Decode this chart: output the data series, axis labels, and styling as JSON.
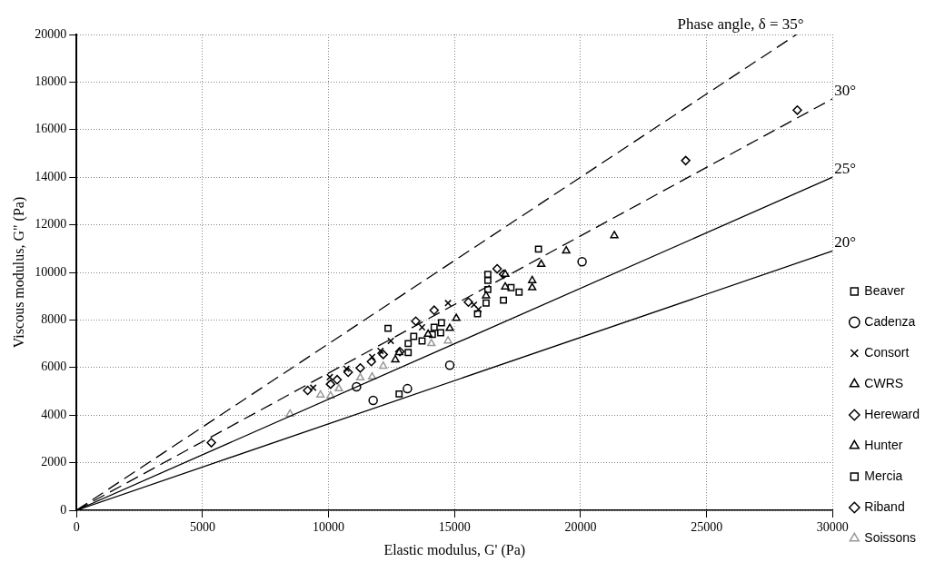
{
  "chart_data": {
    "type": "scatter",
    "xlabel": "Elastic modulus, G' (Pa)",
    "ylabel": "Viscous modulus, G\" (Pa)",
    "xlim": [
      0,
      30000
    ],
    "ylim": [
      0,
      20000
    ],
    "xticks": [
      0,
      5000,
      10000,
      15000,
      20000,
      25000,
      30000
    ],
    "yticks": [
      0,
      2000,
      4000,
      6000,
      8000,
      10000,
      12000,
      14000,
      16000,
      18000,
      20000
    ],
    "grid": true,
    "legend": "right",
    "series": [
      {
        "type": "line",
        "name": "Phase angle, δ = 35°",
        "color": "#000000",
        "line_style": "dashed",
        "marker": "none",
        "x": [
          0,
          28570
        ],
        "values": [
          0,
          20000
        ]
      },
      {
        "type": "line",
        "name": "30°",
        "color": "#000000",
        "line_style": "dashed",
        "marker": "none",
        "x": [
          0,
          30000
        ],
        "values": [
          0,
          17300
        ]
      },
      {
        "type": "line",
        "name": "25°",
        "color": "#000000",
        "line_style": "solid",
        "marker": "none",
        "x": [
          0,
          30000
        ],
        "values": [
          0,
          14000
        ]
      },
      {
        "type": "line",
        "name": "20°",
        "color": "#000000",
        "line_style": "solid",
        "marker": "none",
        "x": [
          0,
          30000
        ],
        "values": [
          0,
          10900
        ]
      },
      {
        "name": "Beaver",
        "color": "#000000",
        "marker": "square",
        "x": [
          12360,
          16320,
          16320,
          18330
        ],
        "values": [
          7650,
          9920,
          9660,
          10980
        ]
      },
      {
        "name": "Cadenza",
        "color": "#000000",
        "marker": "circle",
        "x": [
          11110,
          11770,
          13130,
          14810,
          20060
        ],
        "values": [
          5190,
          4620,
          5110,
          6100,
          10450
        ]
      },
      {
        "name": "Consort",
        "color": "#000000",
        "marker": "cross",
        "x": [
          9390,
          10050,
          10710,
          11730,
          12060,
          12470,
          13710,
          14740,
          15770,
          15950
        ],
        "values": [
          5150,
          5600,
          5950,
          6440,
          6700,
          7120,
          7690,
          8710,
          8640,
          8450
        ]
      },
      {
        "name": "CWRS",
        "color": "#000000",
        "marker": "triangle",
        "x": [
          12650,
          12800,
          13950
        ],
        "values": [
          6330,
          6630,
          7400
        ]
      },
      {
        "name": "Hereward",
        "color": "#000000",
        "marker": "diamond",
        "x": [
          5350,
          9170,
          10080,
          10340,
          10780,
          11260,
          11700,
          12830
        ],
        "values": [
          2840,
          5040,
          5300,
          5490,
          5800,
          5980,
          6250,
          6670
        ]
      },
      {
        "name": "Hunter",
        "color": "#000000",
        "marker": "triangle",
        "x": [
          14810,
          15070,
          16250,
          17010,
          17010,
          18080,
          18080,
          18440,
          19430,
          21340
        ],
        "values": [
          7650,
          8070,
          9020,
          9390,
          9920,
          9360,
          9660,
          10340,
          10910,
          11550
        ]
      },
      {
        "name": "Mercia",
        "color": "#000000",
        "marker": "square",
        "x": [
          12800,
          13160,
          13160,
          13380,
          13710,
          14120,
          14190,
          14450,
          14480,
          15910,
          16250,
          16320,
          16940,
          17240,
          17560
        ],
        "values": [
          4890,
          6630,
          7010,
          7310,
          7120,
          7390,
          7690,
          7460,
          7880,
          8260,
          8710,
          9280,
          8830,
          9360,
          9170
        ]
      },
      {
        "name": "Riband",
        "color": "#000000",
        "marker": "diamond",
        "x": [
          12170,
          13460,
          14190,
          15550,
          16690,
          16940,
          24170,
          28600
        ],
        "values": [
          6550,
          7950,
          8410,
          8750,
          10150,
          9920,
          14700,
          16820
        ]
      },
      {
        "name": "Soissons",
        "color": "#999999",
        "marker": "triangle",
        "x": [
          8470,
          9680,
          10080,
          10410,
          11260,
          11730,
          12170,
          14080,
          14740
        ],
        "values": [
          4050,
          4850,
          4810,
          5110,
          5570,
          5610,
          6060,
          7010,
          7120
        ]
      }
    ]
  }
}
